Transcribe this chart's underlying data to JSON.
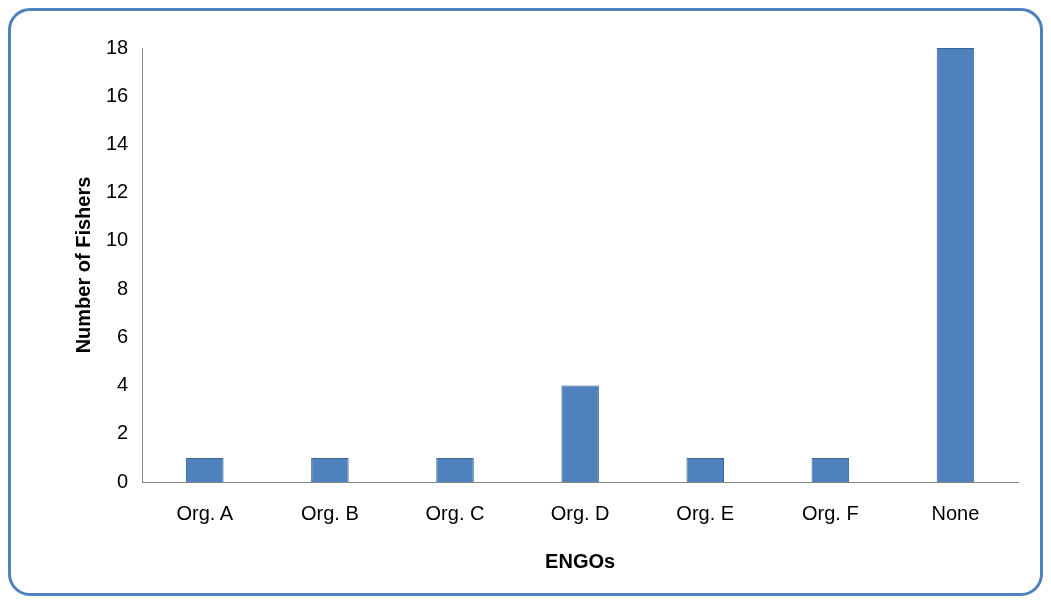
{
  "chart_data": {
    "type": "bar",
    "xlabel": "ENGOs",
    "ylabel": "Number of Fishers",
    "categories": [
      "Org. A",
      "Org. B",
      "Org. C",
      "Org. D",
      "Org. E",
      "Org. F",
      "None"
    ],
    "values": [
      1,
      1,
      1,
      4,
      1,
      1,
      18
    ],
    "color": "#4f81bd",
    "ylim": [
      0,
      18
    ],
    "yticks": [
      0,
      2,
      4,
      6,
      8,
      10,
      12,
      14,
      16,
      18
    ],
    "grid": false,
    "legend": false
  }
}
